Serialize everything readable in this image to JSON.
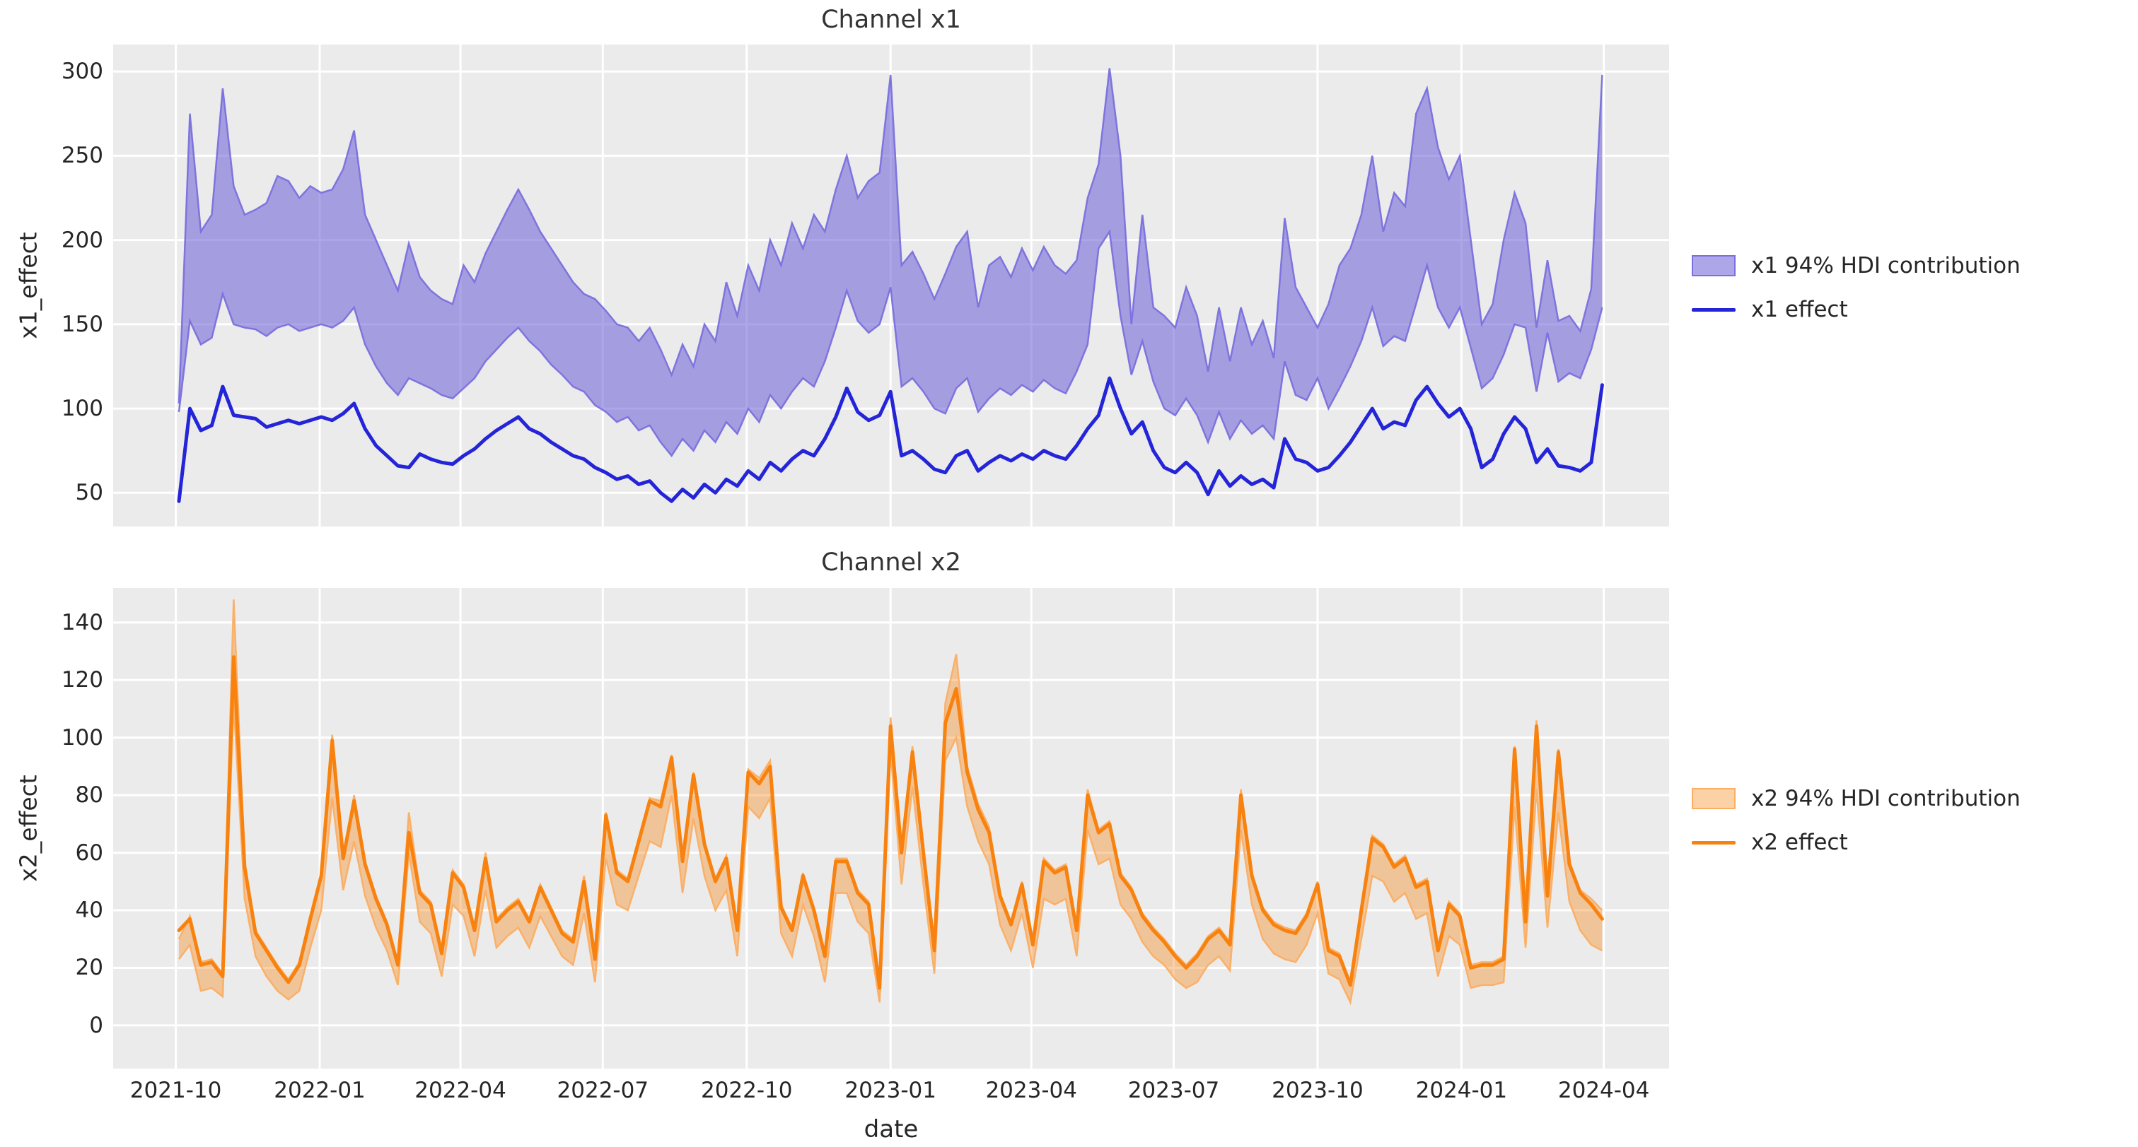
{
  "colors": {
    "background": "#ffffff",
    "plot_bg": "#ebebeb",
    "grid": "#ffffff",
    "text": "#262626"
  },
  "xlabel": "date",
  "x_tick_labels": [
    "2021-10",
    "2022-01",
    "2022-04",
    "2022-07",
    "2022-10",
    "2023-01",
    "2023-04",
    "2023-07",
    "2023-10",
    "2024-01",
    "2024-04"
  ],
  "chart_data": [
    {
      "type": "line+band",
      "title": "Channel x1",
      "ylabel": "x1_effect",
      "xlabel": "date",
      "ylim": [
        30,
        316
      ],
      "y_ticks": [
        50,
        100,
        150,
        200,
        250,
        300
      ],
      "x_start": "2021-10-03",
      "x_freq_days": 7,
      "n_points": 131,
      "legend_position": "right",
      "grid": true,
      "colors": {
        "line": "#2424d9",
        "band_fill": "rgba(105,92,215,0.55)",
        "band_edge": "#7a70dd"
      },
      "series": [
        {
          "name": "x1 94% HDI contribution",
          "type": "band",
          "lo": [
            98,
            152,
            138,
            142,
            168,
            150,
            148,
            147,
            143,
            148,
            150,
            146,
            148,
            150,
            148,
            152,
            160,
            138,
            125,
            115,
            108,
            118,
            115,
            112,
            108,
            106,
            112,
            118,
            128,
            135,
            142,
            148,
            140,
            134,
            126,
            120,
            113,
            110,
            102,
            98,
            92,
            95,
            87,
            90,
            80,
            72,
            82,
            75,
            87,
            80,
            92,
            85,
            100,
            92,
            108,
            100,
            110,
            118,
            113,
            128,
            148,
            170,
            152,
            145,
            150,
            172,
            113,
            118,
            110,
            100,
            97,
            112,
            118,
            98,
            106,
            112,
            108,
            114,
            110,
            117,
            112,
            109,
            122,
            138,
            195,
            205,
            155,
            120,
            140,
            116,
            100,
            96,
            106,
            96,
            80,
            98,
            82,
            93,
            85,
            90,
            82,
            128,
            108,
            105,
            118,
            100,
            112,
            125,
            140,
            160,
            137,
            143,
            140,
            162,
            185,
            160,
            148,
            160,
            136,
            112,
            118,
            132,
            150,
            148,
            110,
            145,
            116,
            121,
            118,
            135,
            160
          ],
          "hi": [
            103,
            275,
            205,
            215,
            290,
            232,
            215,
            218,
            222,
            238,
            235,
            225,
            232,
            228,
            230,
            242,
            265,
            215,
            200,
            185,
            170,
            198,
            178,
            170,
            165,
            162,
            185,
            175,
            192,
            205,
            218,
            230,
            218,
            205,
            195,
            185,
            175,
            168,
            165,
            158,
            150,
            148,
            140,
            148,
            135,
            120,
            138,
            125,
            150,
            140,
            175,
            155,
            185,
            170,
            200,
            185,
            210,
            195,
            215,
            205,
            230,
            250,
            225,
            235,
            240,
            298,
            185,
            193,
            180,
            165,
            180,
            196,
            205,
            160,
            185,
            190,
            178,
            195,
            182,
            196,
            185,
            180,
            188,
            225,
            245,
            302,
            250,
            150,
            215,
            160,
            155,
            148,
            172,
            155,
            122,
            160,
            128,
            160,
            138,
            152,
            130,
            213,
            172,
            160,
            148,
            162,
            185,
            195,
            215,
            250,
            205,
            228,
            220,
            275,
            290,
            255,
            236,
            250,
            200,
            150,
            162,
            200,
            228,
            210,
            148,
            188,
            152,
            155,
            146,
            171,
            298
          ]
        },
        {
          "name": "x1 effect",
          "type": "line",
          "values": [
            45,
            100,
            87,
            90,
            113,
            96,
            95,
            94,
            89,
            91,
            93,
            91,
            93,
            95,
            93,
            97,
            103,
            88,
            78,
            72,
            66,
            65,
            73,
            70,
            68,
            67,
            72,
            76,
            82,
            87,
            91,
            95,
            88,
            85,
            80,
            76,
            72,
            70,
            65,
            62,
            58,
            60,
            55,
            57,
            50,
            45,
            52,
            47,
            55,
            50,
            58,
            54,
            63,
            58,
            68,
            63,
            70,
            75,
            72,
            82,
            95,
            112,
            98,
            93,
            96,
            110,
            72,
            75,
            70,
            64,
            62,
            72,
            75,
            63,
            68,
            72,
            69,
            73,
            70,
            75,
            72,
            70,
            78,
            88,
            96,
            118,
            100,
            85,
            92,
            75,
            65,
            62,
            68,
            62,
            49,
            63,
            54,
            60,
            55,
            58,
            53,
            82,
            70,
            68,
            63,
            65,
            72,
            80,
            90,
            100,
            88,
            92,
            90,
            105,
            113,
            103,
            95,
            100,
            88,
            65,
            70,
            85,
            95,
            88,
            68,
            76,
            66,
            65,
            63,
            68,
            114
          ]
        }
      ]
    },
    {
      "type": "line+band",
      "title": "Channel x2",
      "ylabel": "x2_effect",
      "xlabel": "date",
      "ylim": [
        -15,
        152
      ],
      "y_ticks": [
        0,
        20,
        40,
        60,
        80,
        100,
        120,
        140
      ],
      "x_start": "2021-10-03",
      "x_freq_days": 7,
      "n_points": 131,
      "legend_position": "right",
      "grid": true,
      "colors": {
        "line": "#f8820f",
        "band_fill": "rgba(250,133,20,0.38)",
        "band_edge": "#fbae63"
      },
      "series": [
        {
          "name": "x2 94% HDI contribution",
          "type": "band",
          "lo": [
            23,
            28,
            12,
            13,
            10,
            112,
            44,
            24,
            17,
            12,
            9,
            12,
            27,
            40,
            79,
            47,
            64,
            45,
            34,
            26,
            14,
            60,
            36,
            32,
            17,
            42,
            38,
            24,
            47,
            27,
            31,
            34,
            27,
            38,
            31,
            24,
            21,
            39,
            15,
            58,
            42,
            40,
            52,
            64,
            62,
            80,
            46,
            72,
            52,
            40,
            47,
            24,
            76,
            72,
            79,
            32,
            24,
            42,
            31,
            15,
            46,
            46,
            36,
            32,
            8,
            95,
            49,
            83,
            49,
            18,
            92,
            100,
            76,
            64,
            56,
            35,
            26,
            39,
            20,
            44,
            42,
            44,
            24,
            68,
            56,
            58,
            42,
            37,
            29,
            24,
            21,
            16,
            13,
            15,
            21,
            24,
            19,
            68,
            42,
            30,
            25,
            23,
            22,
            28,
            39,
            18,
            16,
            8,
            30,
            52,
            50,
            43,
            46,
            37,
            39,
            17,
            31,
            28,
            13,
            14,
            14,
            15,
            76,
            27,
            82,
            34,
            74,
            43,
            33,
            28,
            26
          ],
          "hi": [
            30,
            38,
            22,
            23,
            18,
            148,
            57,
            33,
            27,
            21,
            16,
            22,
            38,
            53,
            101,
            59,
            80,
            57,
            45,
            36,
            22,
            74,
            47,
            43,
            26,
            54,
            49,
            34,
            60,
            37,
            41,
            44,
            37,
            49,
            41,
            33,
            30,
            52,
            24,
            74,
            54,
            51,
            65,
            79,
            78,
            94,
            58,
            88,
            64,
            51,
            59,
            34,
            89,
            86,
            92,
            42,
            34,
            53,
            41,
            25,
            58,
            58,
            47,
            43,
            14,
            107,
            61,
            97,
            61,
            27,
            112,
            129,
            90,
            77,
            69,
            46,
            36,
            50,
            29,
            58,
            54,
            56,
            34,
            82,
            68,
            71,
            53,
            48,
            39,
            34,
            30,
            25,
            21,
            25,
            31,
            34,
            29,
            82,
            53,
            41,
            36,
            34,
            33,
            39,
            50,
            27,
            25,
            15,
            41,
            66,
            63,
            56,
            59,
            49,
            51,
            27,
            43,
            39,
            21,
            22,
            22,
            24,
            97,
            37,
            106,
            46,
            96,
            57,
            47,
            44,
            40
          ]
        },
        {
          "name": "x2 effect",
          "type": "line",
          "values": [
            33,
            37,
            21,
            22,
            17,
            128,
            55,
            32,
            26,
            20,
            15,
            21,
            37,
            52,
            99,
            58,
            78,
            56,
            44,
            35,
            21,
            67,
            46,
            42,
            25,
            53,
            48,
            33,
            58,
            36,
            40,
            43,
            36,
            48,
            40,
            32,
            29,
            50,
            23,
            73,
            53,
            50,
            64,
            78,
            76,
            93,
            57,
            87,
            63,
            50,
            58,
            33,
            88,
            84,
            90,
            41,
            33,
            52,
            40,
            24,
            57,
            57,
            46,
            42,
            13,
            104,
            60,
            95,
            60,
            26,
            105,
            117,
            88,
            75,
            67,
            45,
            35,
            49,
            28,
            57,
            53,
            55,
            33,
            80,
            67,
            70,
            52,
            47,
            38,
            33,
            29,
            24,
            20,
            24,
            30,
            33,
            28,
            80,
            52,
            40,
            35,
            33,
            32,
            38,
            49,
            26,
            24,
            14,
            40,
            65,
            62,
            55,
            58,
            48,
            50,
            26,
            42,
            38,
            20,
            21,
            21,
            23,
            96,
            36,
            104,
            45,
            95,
            56,
            46,
            42,
            37
          ]
        }
      ]
    }
  ]
}
